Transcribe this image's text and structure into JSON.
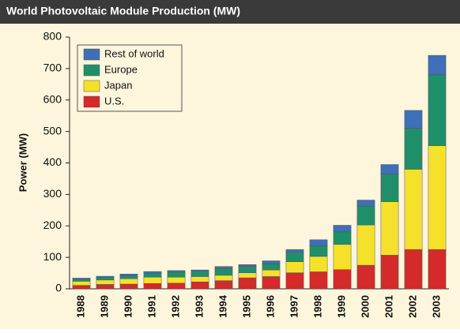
{
  "chart_data": {
    "type": "stacked_bar",
    "title": "World Photovoltaic Module Production (MW)",
    "y_label": "Power (MW)",
    "categories": [
      "1988",
      "1989",
      "1990",
      "1991",
      "1992",
      "1993",
      "1994",
      "1995",
      "1996",
      "1997",
      "1998",
      "1999",
      "2000",
      "2001",
      "2002",
      "2003"
    ],
    "series": [
      {
        "name": "U.S.",
        "color": "#d42a2a",
        "values": [
          11,
          14,
          15,
          17,
          18,
          22,
          26,
          35,
          39,
          51,
          54,
          61,
          75,
          107,
          125,
          125
        ]
      },
      {
        "name": "Japan",
        "color": "#f5e12a",
        "values": [
          13,
          14,
          17,
          20,
          19,
          17,
          17,
          16,
          21,
          35,
          49,
          80,
          128,
          170,
          255,
          330
        ]
      },
      {
        "name": "Europe",
        "color": "#1f8f6a",
        "values": [
          7,
          8,
          10,
          13,
          16,
          17,
          22,
          20,
          19,
          30,
          34,
          40,
          60,
          88,
          130,
          225
        ]
      },
      {
        "name": "Rest of world",
        "color": "#3e6fb8",
        "values": [
          3,
          4,
          5,
          5,
          5,
          4,
          6,
          6,
          10,
          9,
          19,
          21,
          19,
          30,
          57,
          62
        ]
      }
    ],
    "ylim": [
      0,
      800
    ],
    "yticks": [
      0,
      100,
      200,
      300,
      400,
      500,
      600,
      700,
      800
    ],
    "legend": "upper left"
  }
}
